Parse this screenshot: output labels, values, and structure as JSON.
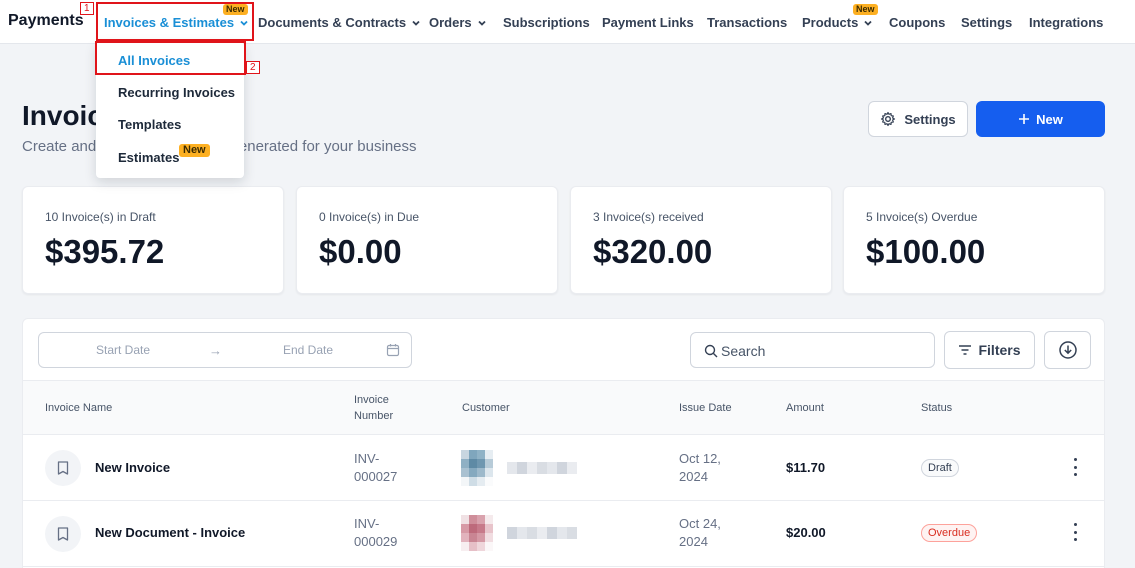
{
  "nav": {
    "brand": "Payments",
    "items": [
      {
        "label": "Invoices & Estimates",
        "badge": "New"
      },
      {
        "label": "Documents & Contracts"
      },
      {
        "label": "Orders"
      },
      {
        "label": "Subscriptions"
      },
      {
        "label": "Payment Links"
      },
      {
        "label": "Transactions"
      },
      {
        "label": "Products",
        "badge": "New"
      },
      {
        "label": "Coupons"
      },
      {
        "label": "Settings"
      },
      {
        "label": "Integrations"
      }
    ]
  },
  "annotations": [
    "1",
    "2"
  ],
  "dropdown": {
    "items": [
      {
        "label": "All Invoices"
      },
      {
        "label": "Recurring Invoices"
      },
      {
        "label": "Templates"
      },
      {
        "label": "Estimates",
        "badge": "New"
      }
    ]
  },
  "header": {
    "title": "Invoic",
    "subtitle_left": "Create and",
    "subtitle_right": "generated for your business",
    "settings_label": "Settings",
    "new_label": "New"
  },
  "stats": [
    {
      "label": "10 Invoice(s) in Draft",
      "value": "$395.72"
    },
    {
      "label": "0 Invoice(s) in Due",
      "value": "$0.00"
    },
    {
      "label": "3 Invoice(s) received",
      "value": "$320.00"
    },
    {
      "label": "5 Invoice(s) Overdue",
      "value": "$100.00"
    }
  ],
  "toolbar": {
    "start_date": "Start Date",
    "end_date": "End Date",
    "arrow": "→",
    "search_placeholder": "Search",
    "filters_label": "Filters"
  },
  "table": {
    "columns": {
      "name": "Invoice Name",
      "number_1": "Invoice",
      "number_2": "Number",
      "customer": "Customer",
      "issue_date": "Issue Date",
      "amount": "Amount",
      "status": "Status"
    },
    "rows": [
      {
        "name": "New Invoice",
        "number_1": "INV-",
        "number_2": "000027",
        "date_1": "Oct 12,",
        "date_2": "2024",
        "amount": "$11.70",
        "status": "Draft"
      },
      {
        "name": "New Document - Invoice",
        "number_1": "INV-",
        "number_2": "000029",
        "date_1": "Oct 24,",
        "date_2": "2024",
        "amount": "$20.00",
        "status": "Overdue"
      }
    ]
  },
  "colors": {
    "accent": "#1a8fd6",
    "primary_button": "#155eef",
    "annotation": "#e0141a",
    "badge": "#fdb022"
  }
}
